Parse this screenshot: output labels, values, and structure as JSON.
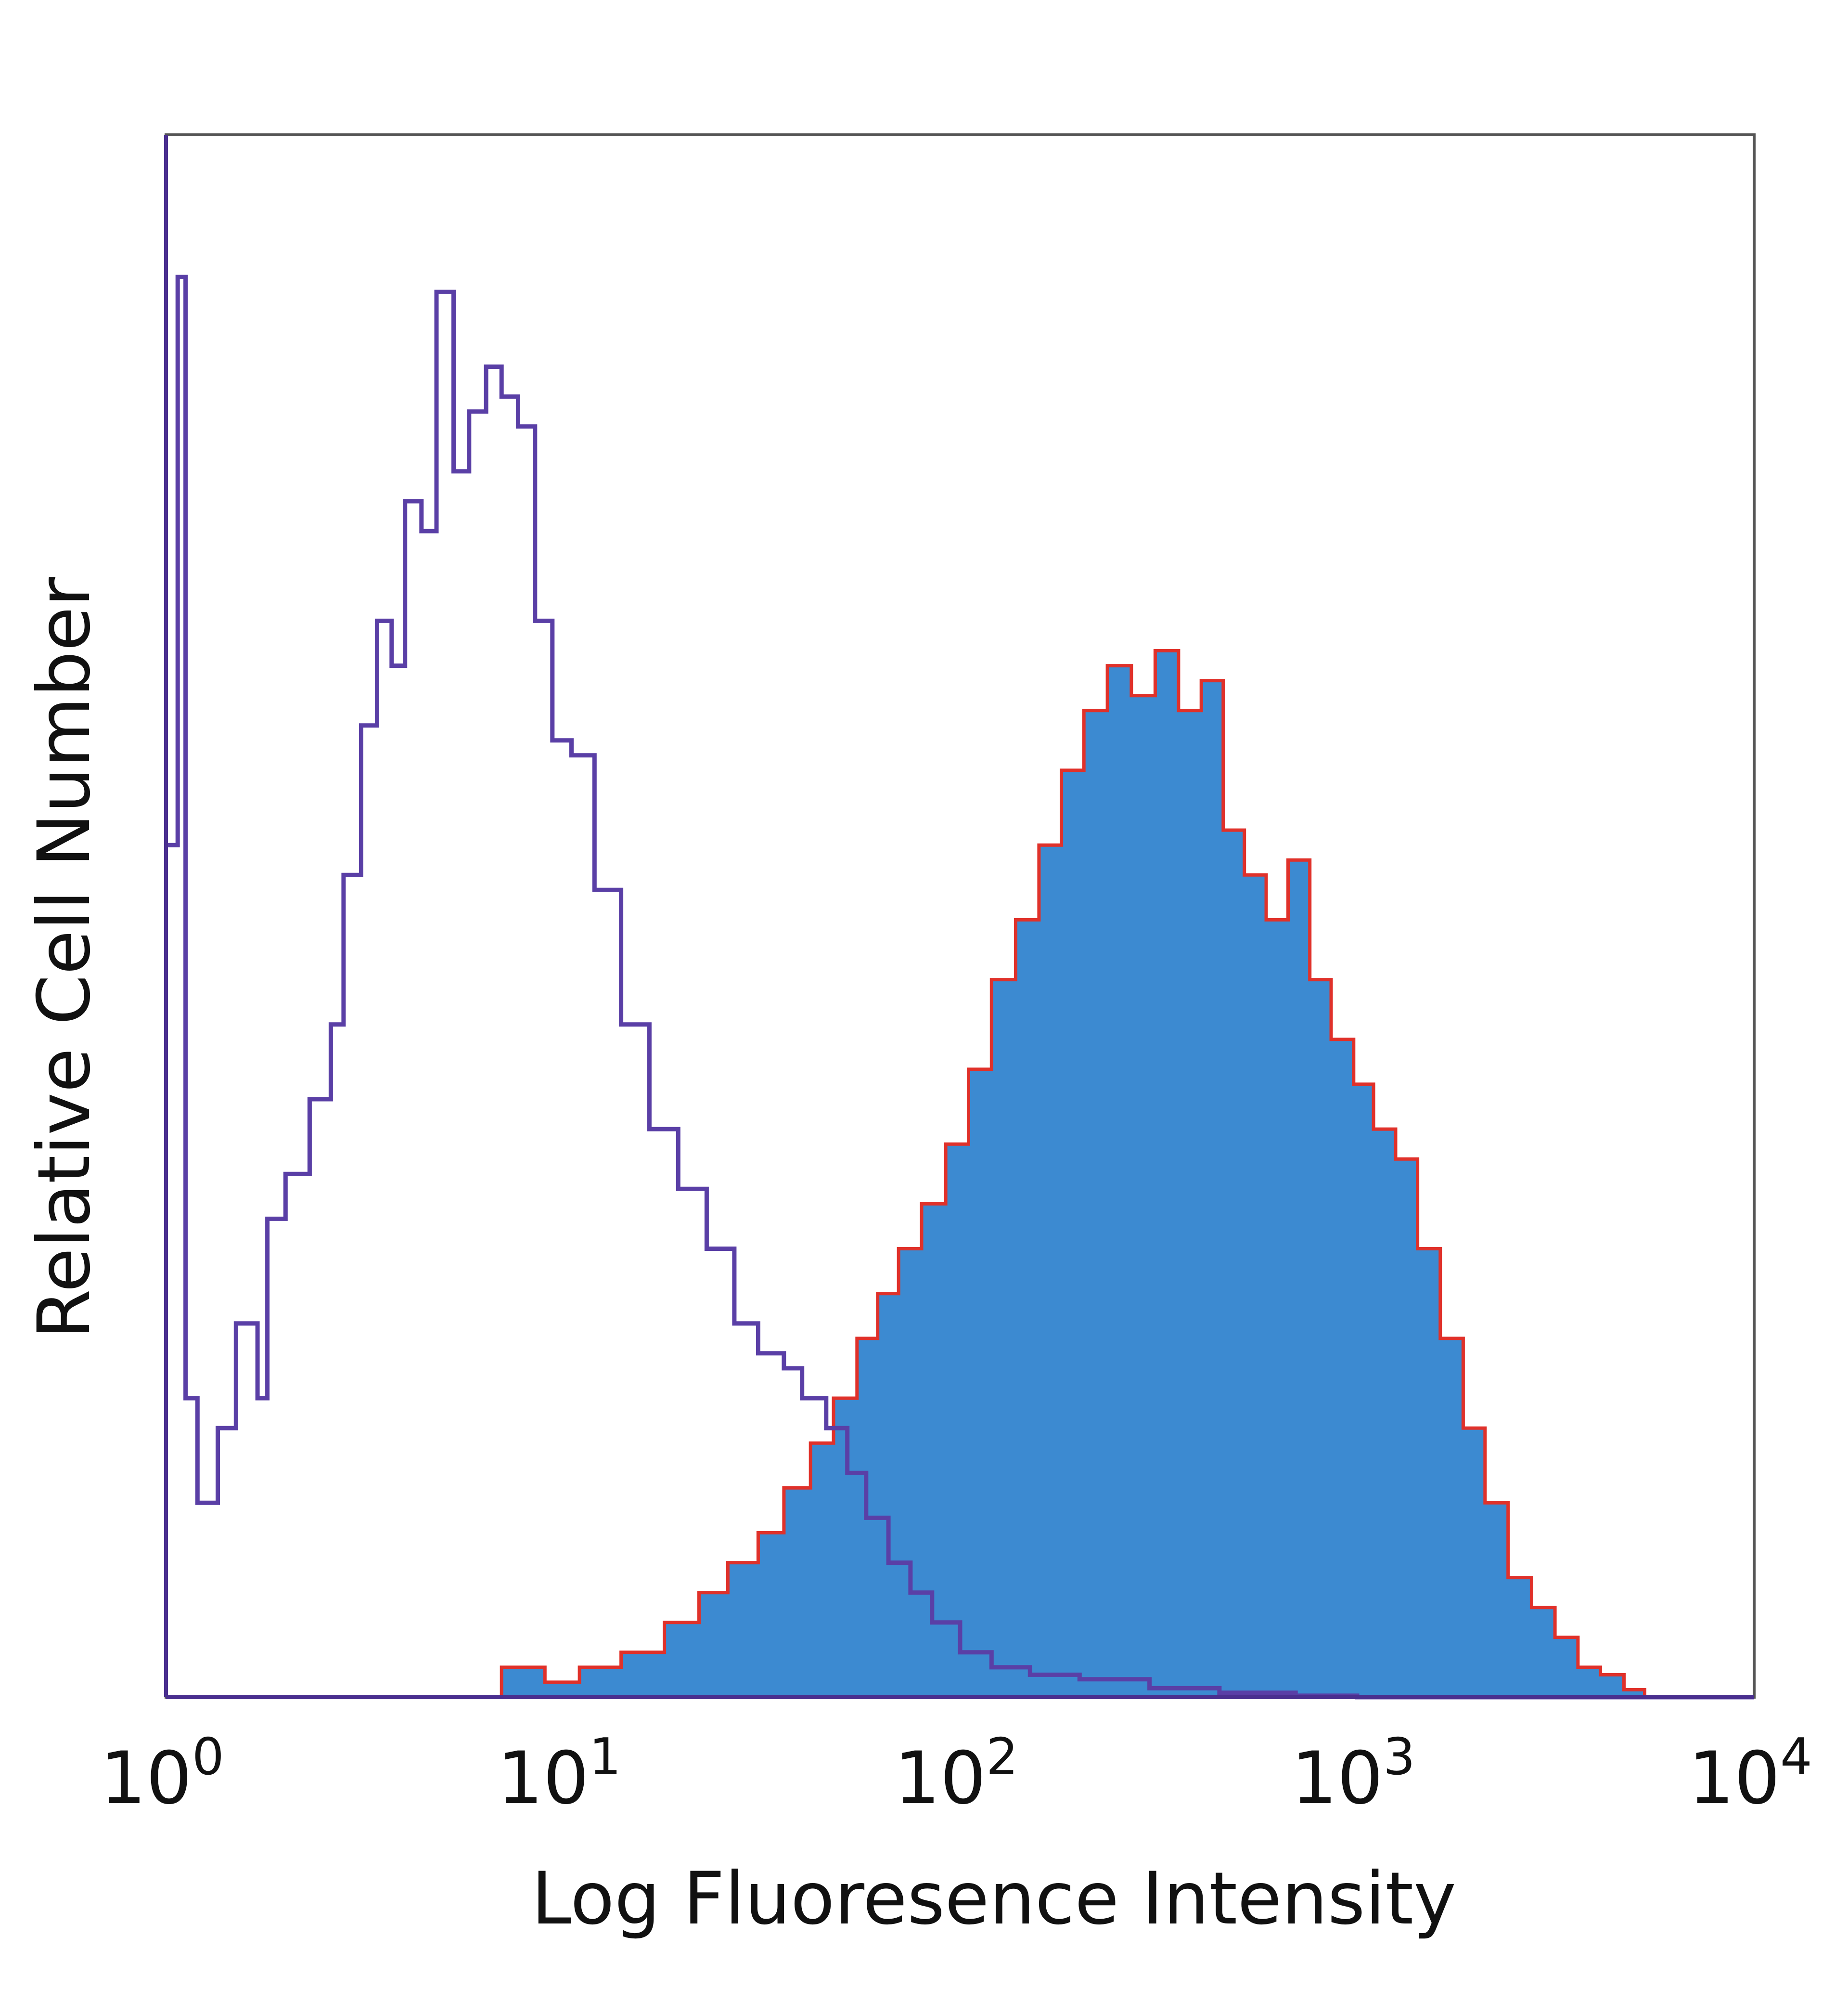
{
  "chart_data": {
    "type": "histogram",
    "title": "",
    "xlabel": "Log Fluoresence Intensity",
    "ylabel": "Relative Cell Number",
    "xscale": "log",
    "xlim": [
      1,
      10000
    ],
    "ylim": [
      0,
      1
    ],
    "grid": false,
    "legend": "none",
    "x_ticks": [
      {
        "base": "10",
        "exp": "0",
        "value": 1
      },
      {
        "base": "10",
        "exp": "1",
        "value": 10
      },
      {
        "base": "10",
        "exp": "2",
        "value": 100
      },
      {
        "base": "10",
        "exp": "3",
        "value": 1000
      },
      {
        "base": "10",
        "exp": "4",
        "value": 10000
      }
    ],
    "series": [
      {
        "style": "outline",
        "color": "#5a3fa6",
        "points": [
          [
            1.0,
            0.57
          ],
          [
            1.07,
            0.95
          ],
          [
            1.12,
            0.2
          ],
          [
            1.2,
            0.13
          ],
          [
            1.35,
            0.18
          ],
          [
            1.5,
            0.25
          ],
          [
            1.7,
            0.2
          ],
          [
            1.8,
            0.32
          ],
          [
            2.0,
            0.35
          ],
          [
            2.3,
            0.4
          ],
          [
            2.6,
            0.45
          ],
          [
            2.8,
            0.55
          ],
          [
            3.1,
            0.65
          ],
          [
            3.4,
            0.72
          ],
          [
            3.7,
            0.69
          ],
          [
            4.0,
            0.8
          ],
          [
            4.4,
            0.78
          ],
          [
            4.8,
            0.94
          ],
          [
            5.3,
            0.82
          ],
          [
            5.8,
            0.86
          ],
          [
            6.4,
            0.89
          ],
          [
            7.0,
            0.87
          ],
          [
            7.7,
            0.85
          ],
          [
            8.5,
            0.72
          ],
          [
            9.4,
            0.64
          ],
          [
            10.5,
            0.63
          ],
          [
            12.0,
            0.54
          ],
          [
            14.0,
            0.45
          ],
          [
            16.5,
            0.38
          ],
          [
            19.5,
            0.34
          ],
          [
            23.0,
            0.3
          ],
          [
            27.0,
            0.25
          ],
          [
            31.0,
            0.23
          ],
          [
            36.0,
            0.22
          ],
          [
            40.0,
            0.2
          ],
          [
            46.0,
            0.18
          ],
          [
            52.0,
            0.15
          ],
          [
            58.0,
            0.12
          ],
          [
            66.0,
            0.09
          ],
          [
            75.0,
            0.07
          ],
          [
            85.0,
            0.05
          ],
          [
            100.0,
            0.03
          ],
          [
            120.0,
            0.02
          ],
          [
            150.0,
            0.015
          ],
          [
            200.0,
            0.012
          ],
          [
            300.0,
            0.006
          ],
          [
            450.0,
            0.003
          ],
          [
            700.0,
            0.001
          ],
          [
            1000.0,
            0.0
          ],
          [
            10000.0,
            0.0
          ]
        ]
      },
      {
        "style": "filled",
        "color": "#3c8ad1",
        "outline_color": "#e0312a",
        "points": [
          [
            1.0,
            0.0
          ],
          [
            6.5,
            0.0
          ],
          [
            7.0,
            0.02
          ],
          [
            9.0,
            0.01
          ],
          [
            11.0,
            0.02
          ],
          [
            14.0,
            0.03
          ],
          [
            18.0,
            0.05
          ],
          [
            22.0,
            0.07
          ],
          [
            26.0,
            0.09
          ],
          [
            31.0,
            0.11
          ],
          [
            36.0,
            0.14
          ],
          [
            42.0,
            0.17
          ],
          [
            48.0,
            0.2
          ],
          [
            55.0,
            0.24
          ],
          [
            62.0,
            0.27
          ],
          [
            70.0,
            0.3
          ],
          [
            80.0,
            0.33
          ],
          [
            92.0,
            0.37
          ],
          [
            105.0,
            0.42
          ],
          [
            120.0,
            0.48
          ],
          [
            138.0,
            0.52
          ],
          [
            158.0,
            0.57
          ],
          [
            180.0,
            0.62
          ],
          [
            205.0,
            0.66
          ],
          [
            235.0,
            0.69
          ],
          [
            270.0,
            0.67
          ],
          [
            310.0,
            0.7
          ],
          [
            355.0,
            0.66
          ],
          [
            405.0,
            0.68
          ],
          [
            460.0,
            0.58
          ],
          [
            520.0,
            0.55
          ],
          [
            590.0,
            0.52
          ],
          [
            670.0,
            0.56
          ],
          [
            760.0,
            0.48
          ],
          [
            860.0,
            0.44
          ],
          [
            980.0,
            0.41
          ],
          [
            1100.0,
            0.38
          ],
          [
            1250.0,
            0.36
          ],
          [
            1420.0,
            0.3
          ],
          [
            1620.0,
            0.24
          ],
          [
            1850.0,
            0.18
          ],
          [
            2100.0,
            0.13
          ],
          [
            2400.0,
            0.08
          ],
          [
            2750.0,
            0.06
          ],
          [
            3150.0,
            0.04
          ],
          [
            3600.0,
            0.02
          ],
          [
            4100.0,
            0.015
          ],
          [
            4700.0,
            0.005
          ],
          [
            5300.0,
            0.0
          ],
          [
            10000.0,
            0.0
          ]
        ]
      }
    ]
  }
}
